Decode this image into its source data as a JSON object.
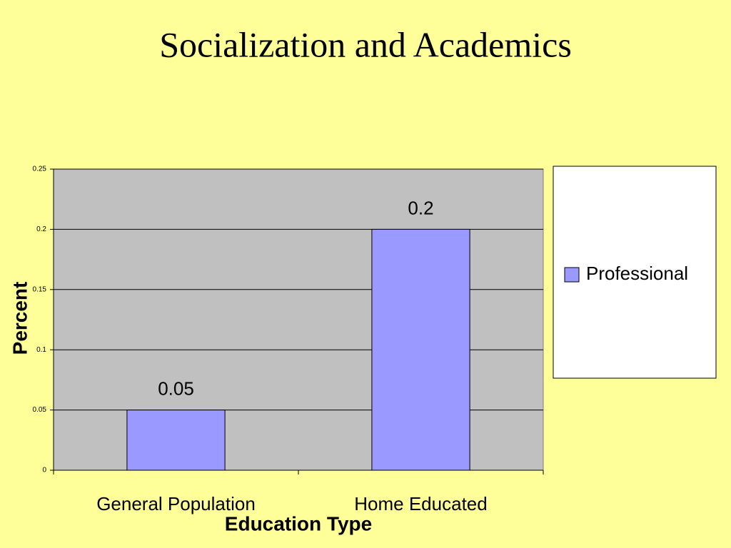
{
  "chart_data": {
    "type": "bar",
    "title": "Socialization and Academics",
    "x_label": "Education Type",
    "y_label": "Percent",
    "categories": [
      "General Population",
      "Home Educated"
    ],
    "series": [
      {
        "name": "Professional",
        "color": "#9999ff",
        "values": [
          0.05,
          0.2
        ]
      }
    ],
    "ylim": [
      0,
      0.25
    ],
    "yticks": [
      0,
      0.05,
      0.1,
      0.15,
      0.2,
      0.25
    ],
    "grid": true,
    "legend": "right",
    "plot_background": "#c0c0c0"
  }
}
